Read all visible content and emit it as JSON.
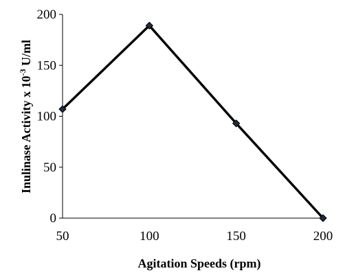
{
  "chart_data": {
    "type": "line",
    "xlabel": "Agitation Speeds (rpm)",
    "ylabel_prefix": "Inulinase Activity x  10",
    "ylabel_superscript": "-3",
    "ylabel_suffix": " U/ml",
    "x": [
      50,
      100,
      150,
      200
    ],
    "series": [
      {
        "values": [
          107,
          189,
          93,
          0
        ]
      }
    ],
    "xlim": [
      50,
      200
    ],
    "ylim": [
      0,
      200
    ],
    "x_ticks": [
      "50",
      "100",
      "150",
      "200"
    ],
    "y_ticks": [
      "0",
      "50",
      "100",
      "150",
      "200"
    ],
    "grid": false,
    "legend": "none",
    "line_color": "#000000",
    "marker_color": "#1f2a44",
    "marker": "diamond"
  }
}
